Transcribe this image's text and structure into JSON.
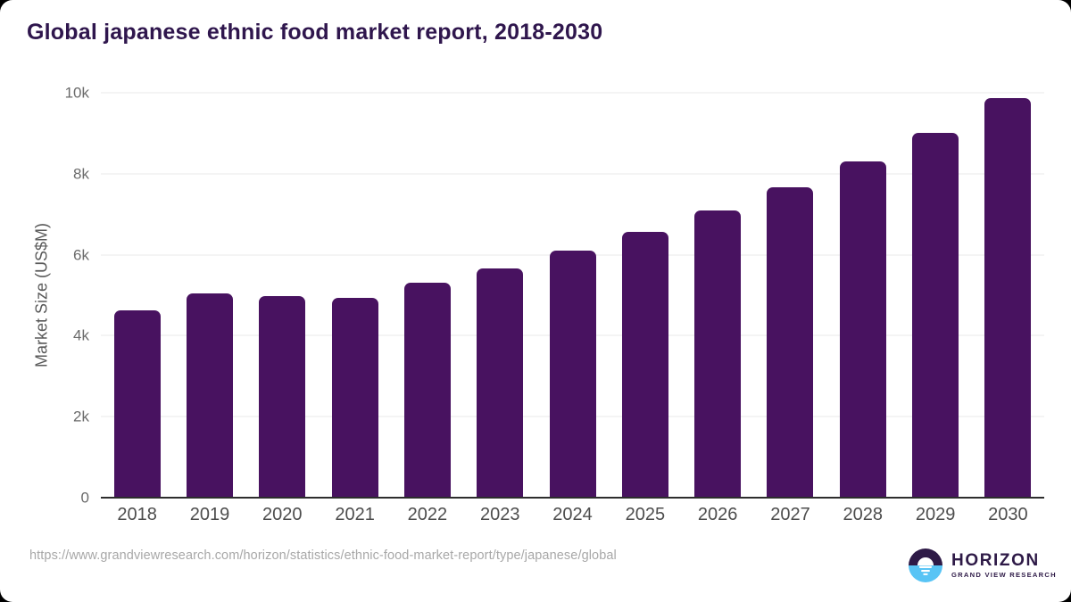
{
  "chart_data": {
    "type": "bar",
    "title": "Global japanese ethnic food market report, 2018-2030",
    "categories": [
      "2018",
      "2019",
      "2020",
      "2021",
      "2022",
      "2023",
      "2024",
      "2025",
      "2026",
      "2027",
      "2028",
      "2029",
      "2030"
    ],
    "values": [
      4630,
      5050,
      4980,
      4930,
      5300,
      5670,
      6100,
      6560,
      7100,
      7660,
      8310,
      9020,
      9870
    ],
    "xlabel": "",
    "ylabel": "Market Size (US$M)",
    "ylim": [
      0,
      10000
    ],
    "yticks": [
      {
        "label": "0",
        "value": 0
      },
      {
        "label": "2k",
        "value": 2000
      },
      {
        "label": "4k",
        "value": 4000
      },
      {
        "label": "6k",
        "value": 6000
      },
      {
        "label": "8k",
        "value": 8000
      },
      {
        "label": "10k",
        "value": 10000
      }
    ],
    "grid": true,
    "legend": "none",
    "bar_color": "#481260",
    "gridline_color": "#e9e9e9",
    "baseline_color": "#2d2d2d"
  },
  "footer": {
    "source_url": "https://www.grandviewresearch.com/horizon/statistics/ethnic-food-market-report/type/japanese/global",
    "logo": {
      "name": "HORIZON",
      "tagline": "GRAND VIEW RESEARCH",
      "colors": {
        "dark": "#2e1a47",
        "blue": "#58c4f5"
      }
    }
  }
}
